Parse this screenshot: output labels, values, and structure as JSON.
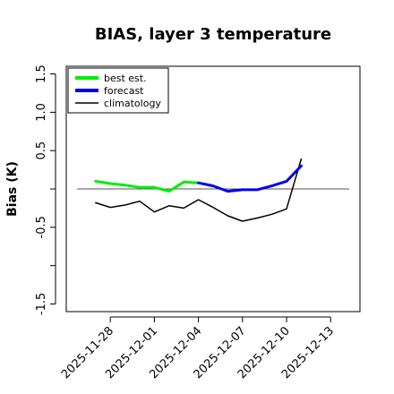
{
  "chart_data": {
    "type": "line",
    "title": "BIAS, layer 3 temperature",
    "ylabel": "Bias (K)",
    "xlabel": "",
    "ylim": [
      -1.6,
      1.6
    ],
    "xlim": [
      "2025-11-25",
      "2025-12-15"
    ],
    "yticks": [
      "-1.5",
      "-1.0",
      "-0.5",
      "0.0",
      "0.5",
      "1.0",
      "1.5"
    ],
    "ytick_labels": [
      "-1.5",
      "",
      "-0.5",
      "",
      "0.5",
      "1.0",
      "1.5"
    ],
    "xtick_labels": [
      "2025-11-28",
      "2025-12-01",
      "2025-12-04",
      "2025-12-07",
      "2025-12-10",
      "2025-12-13"
    ],
    "highlight_tick": "2025-12-04",
    "highlight_color": "#228b22",
    "reference_line": 0,
    "legend_position": "top-left",
    "series": [
      {
        "name": "best est.",
        "color": "#00ee00",
        "width": 3,
        "points": [
          [
            "2025-11-27",
            0.1
          ],
          [
            "2025-11-28",
            0.07
          ],
          [
            "2025-11-29",
            0.05
          ],
          [
            "2025-11-30",
            0.02
          ],
          [
            "2025-12-01",
            0.02
          ],
          [
            "2025-12-02",
            -0.03
          ],
          [
            "2025-12-03",
            0.09
          ],
          [
            "2025-12-04",
            0.08
          ]
        ]
      },
      {
        "name": "forecast",
        "color": "#0000ee",
        "width": 3,
        "points": [
          [
            "2025-12-04",
            0.08
          ],
          [
            "2025-12-05",
            0.04
          ],
          [
            "2025-12-06",
            -0.03
          ],
          [
            "2025-12-07",
            -0.01
          ],
          [
            "2025-12-08",
            -0.01
          ],
          [
            "2025-12-09",
            0.04
          ],
          [
            "2025-12-10",
            0.1
          ],
          [
            "2025-12-11",
            0.3
          ]
        ]
      },
      {
        "name": "climatology",
        "color": "#000000",
        "width": 1.5,
        "points": [
          [
            "2025-11-27",
            -0.18
          ],
          [
            "2025-11-28",
            -0.24
          ],
          [
            "2025-11-29",
            -0.21
          ],
          [
            "2025-11-30",
            -0.16
          ],
          [
            "2025-12-01",
            -0.3
          ],
          [
            "2025-12-02",
            -0.22
          ],
          [
            "2025-12-03",
            -0.25
          ],
          [
            "2025-12-04",
            -0.14
          ],
          [
            "2025-12-05",
            -0.24
          ],
          [
            "2025-12-06",
            -0.35
          ],
          [
            "2025-12-07",
            -0.42
          ],
          [
            "2025-12-08",
            -0.38
          ],
          [
            "2025-12-09",
            -0.33
          ],
          [
            "2025-12-10",
            -0.26
          ],
          [
            "2025-12-11",
            0.39
          ]
        ]
      }
    ]
  }
}
